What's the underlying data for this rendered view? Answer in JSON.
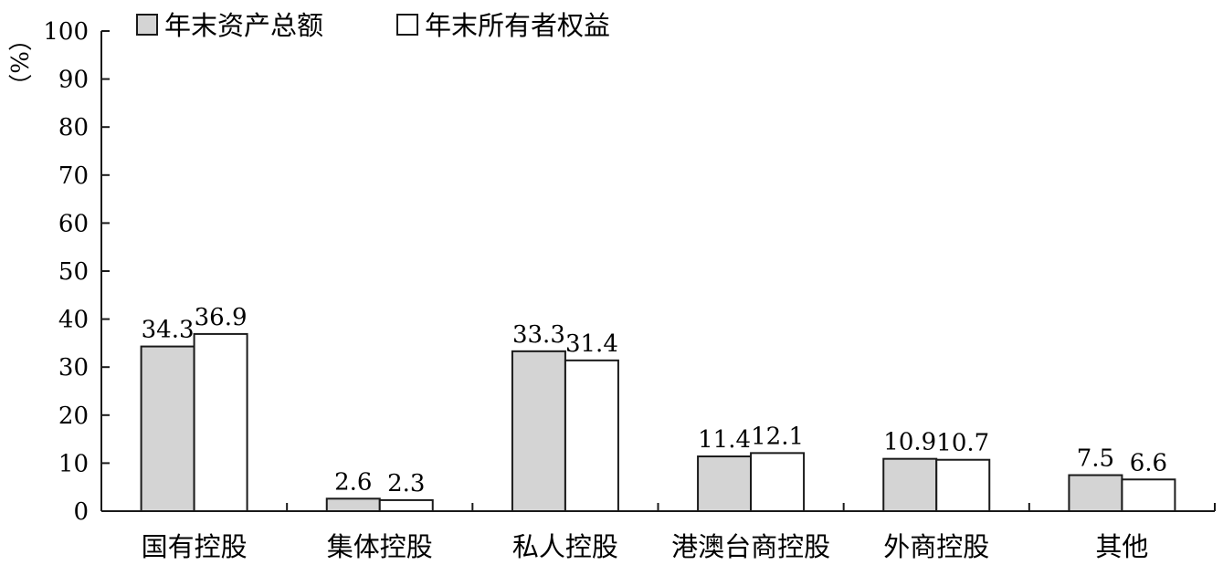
{
  "chart_data": {
    "type": "bar",
    "ylabel": "（%）",
    "ylim": [
      0,
      100
    ],
    "yticks": [
      0,
      10,
      20,
      30,
      40,
      50,
      60,
      70,
      80,
      90,
      100
    ],
    "grid": false,
    "legend_position": "top-left",
    "categories": [
      "国有控股",
      "集体控股",
      "私人控股",
      "港澳台商控股",
      "外商控股",
      "其他"
    ],
    "series": [
      {
        "name": "年末资产总额",
        "color": "#d4d4d4",
        "values": [
          34.3,
          2.6,
          33.3,
          11.4,
          10.9,
          7.5
        ],
        "labels": [
          "34.3",
          "2.6",
          "33.3",
          "11.4",
          "10.9",
          "7.5"
        ]
      },
      {
        "name": "年末所有者权益",
        "color": "#ffffff",
        "values": [
          36.9,
          2.3,
          31.4,
          12.1,
          10.7,
          6.6
        ],
        "labels": [
          "36.9",
          "2.3",
          "31.4",
          "12.1",
          "10.7",
          "6.6"
        ]
      }
    ]
  }
}
